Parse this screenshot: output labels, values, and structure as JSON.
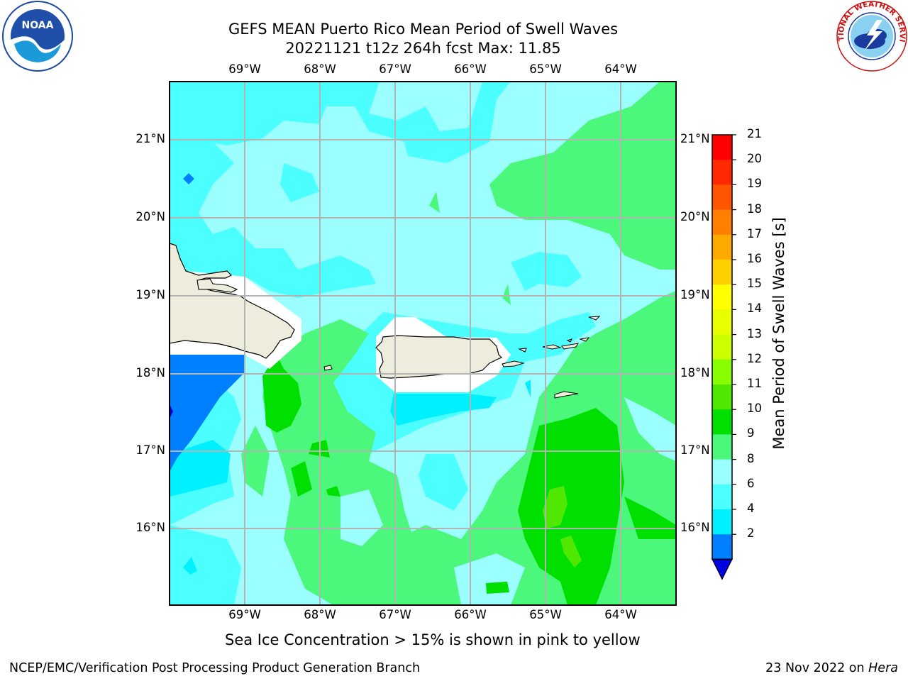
{
  "title": {
    "line1": "GEFS MEAN Puerto Rico Mean Period of Swell Waves",
    "line2": "20221121 t12z 264h fcst   Max: 11.85"
  },
  "logos": {
    "left": "noaa-logo",
    "right": "nws-logo",
    "nws_text": "NATIONAL WEATHER SERVICE",
    "noaa_text": "NOAA"
  },
  "map": {
    "lon_labels": [
      "69°W",
      "68°W",
      "67°W",
      "66°W",
      "65°W",
      "64°W"
    ],
    "lat_labels": [
      "21°N",
      "20°N",
      "19°N",
      "18°N",
      "17°N",
      "16°N"
    ],
    "land_color": "#eeecdc",
    "ocean_colors": {
      "dark_blue": "#0000e0",
      "blue": "#0080ff",
      "cyan": "#00f0ff",
      "light_cyan": "#4cffff",
      "pale_cyan": "#9cffff",
      "light_green": "#4cf87c",
      "green": "#00e000"
    }
  },
  "colorbar": {
    "title": "Mean Period of Swell Waves [s]",
    "ticks": [
      "21",
      "20",
      "19",
      "18",
      "17",
      "16",
      "15",
      "14",
      "13",
      "12",
      "11",
      "10",
      "9",
      "8",
      "6",
      "4",
      "2"
    ],
    "colors": [
      "#ff0000",
      "#ff2800",
      "#ff5500",
      "#ff8000",
      "#ffaa00",
      "#ffd000",
      "#ffff00",
      "#e8ff00",
      "#ccff00",
      "#88ff00",
      "#50e800",
      "#00e000",
      "#4cf87c",
      "#9cffff",
      "#4cffff",
      "#00f0ff",
      "#0080ff"
    ],
    "under_color": "#0000e0"
  },
  "note": "Sea Ice Concentration > 15% is shown in pink to yellow",
  "footer": {
    "left": "NCEP/EMC/Verification Post Processing Product Generation Branch",
    "right_date": "23 Nov 2022 on ",
    "right_machine": "Hera"
  }
}
